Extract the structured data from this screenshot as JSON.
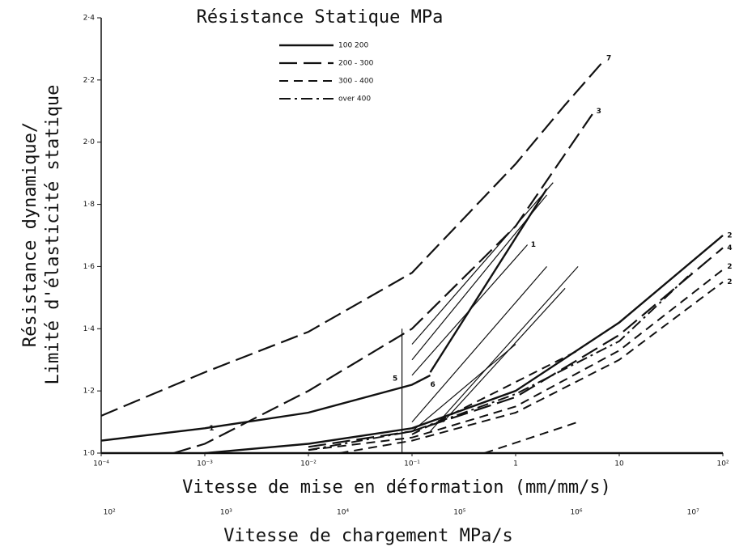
{
  "chart_data": {
    "type": "line",
    "title": "Résistance Statique MPa",
    "ylabel": [
      "Résistance dynamique/",
      "Limité d'élasticité statique"
    ],
    "xlabel": "Vitesse de mise en déformation (mm/mm/s)",
    "x2label": "Vitesse de chargement MPa/s",
    "xscale": "log",
    "xlim": [
      0.0001,
      100
    ],
    "xticks": [
      {
        "value": 0.0001,
        "label": "10⁻⁴"
      },
      {
        "value": 0.001,
        "label": "10⁻³"
      },
      {
        "value": 0.01,
        "label": "10⁻²"
      },
      {
        "value": 0.1,
        "label": "10⁻¹"
      },
      1,
      10,
      {
        "value": 100,
        "label": "10²"
      }
    ],
    "x2lim": [
      85,
      18000000
    ],
    "x2ticks": [
      {
        "value": 100,
        "label": "10²"
      },
      {
        "value": 1000,
        "label": "10³"
      },
      {
        "value": 10000,
        "label": "10⁴"
      },
      {
        "value": 100000,
        "label": "10⁵"
      },
      {
        "value": 1000000,
        "label": "10⁶"
      },
      {
        "value": 10000000,
        "label": "10⁷"
      }
    ],
    "ylim": [
      1.0,
      2.4
    ],
    "yticks": [
      {
        "value": 1.0,
        "label": "1·0"
      },
      {
        "value": 1.2,
        "label": "1·2"
      },
      {
        "value": 1.4,
        "label": "1·4"
      },
      {
        "value": 1.6,
        "label": "1·6"
      },
      {
        "value": 1.8,
        "label": "1·8"
      },
      {
        "value": 2.0,
        "label": "2·0"
      },
      {
        "value": 2.2,
        "label": "2·2"
      },
      {
        "value": 2.4,
        "label": "2·4"
      }
    ],
    "color": "#111111",
    "legend": [
      {
        "name": "100  200",
        "style": "solid"
      },
      {
        "name": "200 - 300",
        "style": "long"
      },
      {
        "name": "300 - 400",
        "style": "dash"
      },
      {
        "name": "over 400",
        "style": "dashdot"
      }
    ],
    "curves": [
      {
        "style": "long",
        "x": [
          0.0001,
          0.001,
          0.01,
          0.1,
          1,
          3,
          7
        ],
        "y": [
          1.12,
          1.26,
          1.39,
          1.58,
          1.93,
          2.12,
          2.26
        ]
      },
      {
        "style": "long",
        "x": [
          0.0005,
          0.001,
          0.01,
          0.1,
          1,
          5.5
        ],
        "y": [
          1.0,
          1.03,
          1.2,
          1.4,
          1.73,
          2.09
        ]
      },
      {
        "style": "solid",
        "x": [
          0.0001,
          0.001,
          0.01,
          0.1,
          0.15
        ],
        "y": [
          1.04,
          1.08,
          1.13,
          1.22,
          1.25
        ]
      },
      {
        "style": "solid",
        "x": [
          0.0001,
          100
        ],
        "y": [
          1.0,
          1.0
        ]
      },
      {
        "style": "solid",
        "x": [
          0.001,
          0.01,
          0.1,
          1,
          10,
          100
        ],
        "y": [
          1.0,
          1.03,
          1.08,
          1.2,
          1.42,
          1.7
        ]
      },
      {
        "style": "long",
        "x": [
          0.01,
          0.1,
          1,
          10,
          100
        ],
        "y": [
          1.02,
          1.07,
          1.18,
          1.38,
          1.66
        ]
      },
      {
        "style": "dash",
        "x": [
          0.01,
          0.1,
          1,
          10,
          100
        ],
        "y": [
          1.01,
          1.05,
          1.15,
          1.33,
          1.59
        ]
      },
      {
        "style": "dash",
        "x": [
          0.02,
          0.1,
          1,
          10,
          100
        ],
        "y": [
          1.0,
          1.04,
          1.13,
          1.3,
          1.55
        ]
      },
      {
        "style": "dashdot",
        "x": [
          0.01,
          0.1,
          1,
          10,
          50
        ],
        "y": [
          1.01,
          1.07,
          1.19,
          1.36,
          1.58
        ]
      },
      {
        "style": "thin",
        "x": [
          0.1,
          2
        ],
        "y": [
          1.3,
          1.83
        ]
      },
      {
        "style": "thin",
        "x": [
          0.1,
          2.3
        ],
        "y": [
          1.35,
          1.87
        ]
      },
      {
        "style": "solid",
        "x": [
          0.15,
          2
        ],
        "y": [
          1.26,
          1.85
        ]
      },
      {
        "style": "thin",
        "x": [
          0.1,
          1.3
        ],
        "y": [
          1.25,
          1.67
        ]
      },
      {
        "style": "thin",
        "x": [
          0.1,
          2
        ],
        "y": [
          1.1,
          1.6
        ]
      },
      {
        "style": "thin",
        "x": [
          0.15,
          4
        ],
        "y": [
          1.07,
          1.6
        ]
      },
      {
        "style": "thin",
        "x": [
          0.1,
          1
        ],
        "y": [
          1.07,
          1.35
        ]
      },
      {
        "style": "thin",
        "x": [
          0.2,
          3
        ],
        "y": [
          1.1,
          1.53
        ]
      },
      {
        "style": "dash",
        "x": [
          0.1,
          4
        ],
        "y": [
          1.06,
          1.33
        ]
      },
      {
        "style": "dash",
        "x": [
          0.5,
          4
        ],
        "y": [
          1.0,
          1.1
        ]
      },
      {
        "style": "thin",
        "x": [
          0.08,
          0.08
        ],
        "y": [
          1.0,
          1.4
        ]
      }
    ],
    "curve_labels": [
      {
        "text": "7",
        "x": 7.5,
        "y": 2.27
      },
      {
        "text": "3",
        "x": 6,
        "y": 2.1
      },
      {
        "text": "1",
        "x": 1.4,
        "y": 1.67
      },
      {
        "text": "1",
        "x": 0.0011,
        "y": 1.08
      },
      {
        "text": "6",
        "x": 0.15,
        "y": 1.22
      },
      {
        "text": "5",
        "x": 0.065,
        "y": 1.24
      },
      {
        "text": "2",
        "x": 110,
        "y": 1.7
      },
      {
        "text": "4",
        "x": 110,
        "y": 1.66
      },
      {
        "text": "2",
        "x": 110,
        "y": 1.6
      },
      {
        "text": "2",
        "x": 110,
        "y": 1.55
      }
    ]
  }
}
